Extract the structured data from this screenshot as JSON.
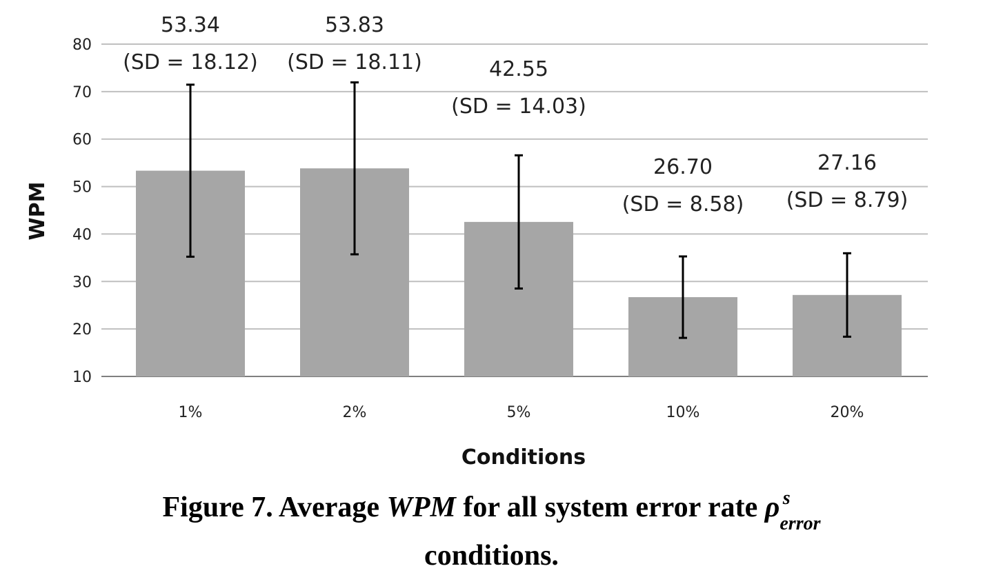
{
  "chart_data": {
    "type": "bar",
    "categories": [
      "1%",
      "2%",
      "5%",
      "10%",
      "20%"
    ],
    "values": [
      53.34,
      53.83,
      42.55,
      26.7,
      27.16
    ],
    "sd": [
      18.12,
      18.11,
      14.03,
      8.58,
      8.79
    ],
    "value_labels": [
      "53.34",
      "53.83",
      "42.55",
      "26.70",
      "27.16"
    ],
    "sd_labels": [
      "(SD = 18.12)",
      "(SD = 18.11)",
      "(SD = 14.03)",
      "(SD = 8.58)",
      "(SD = 8.79)"
    ],
    "xlabel": "Conditions",
    "ylabel": "WPM",
    "ylim": [
      10,
      80
    ],
    "yticks": [
      10,
      20,
      30,
      40,
      50,
      60,
      70,
      80
    ],
    "grid": true,
    "bar_color": "#a6a6a6",
    "error_bar_color": "#000000"
  },
  "caption": {
    "prefix": "Figure 7. Average ",
    "wpm": "WPM",
    "middle": " for all system error rate ",
    "rho": "ρ",
    "rho_sup": "s",
    "rho_sub": "error",
    "line2": "conditions."
  }
}
